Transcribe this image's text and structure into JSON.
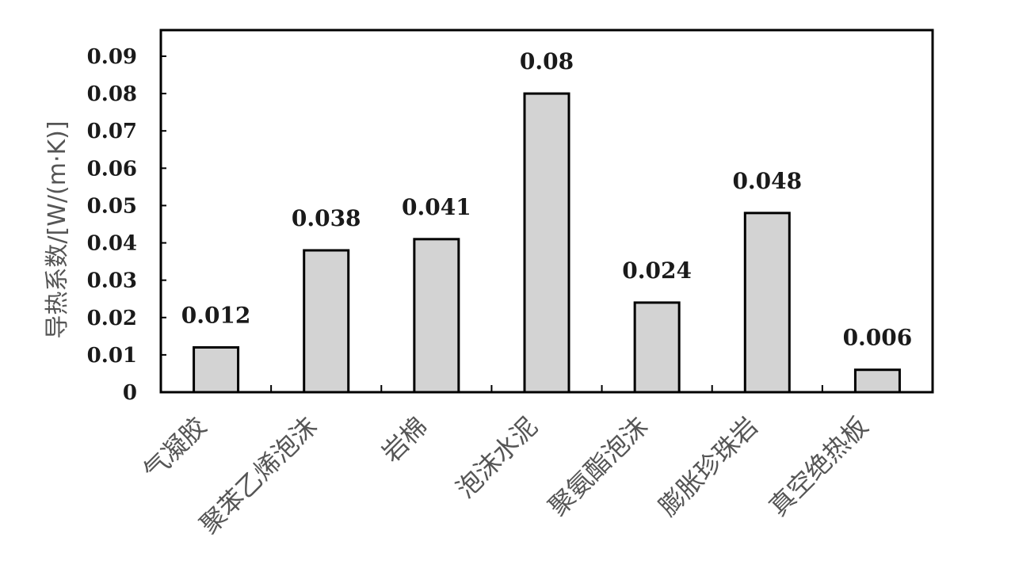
{
  "chart_data": {
    "type": "bar",
    "categories": [
      "气凝胶",
      "聚苯乙烯泡沫",
      "岩棉",
      "泡沫水泥",
      "聚氨酯泡沫",
      "膨胀珍珠岩",
      "真空绝热板"
    ],
    "values": [
      0.012,
      0.038,
      0.041,
      0.08,
      0.024,
      0.048,
      0.006
    ],
    "data_labels": [
      "0.012",
      "0.038",
      "0.041",
      "0.08",
      "0.024",
      "0.048",
      "0.006"
    ],
    "title": "",
    "xlabel": "",
    "ylabel": "导热系数/[W/(m·K)]",
    "ylim": [
      0,
      0.097
    ],
    "yticks": [
      0,
      0.01,
      0.02,
      0.03,
      0.04,
      0.05,
      0.06,
      0.07,
      0.08,
      0.09
    ],
    "ytick_labels": [
      "0",
      "0.01",
      "0.02",
      "0.03",
      "0.04",
      "0.05",
      "0.06",
      "0.07",
      "0.08",
      "0.09"
    ],
    "grid": false,
    "legend": "none",
    "bar_color": "#d3d3d3",
    "edge_color": "#000000"
  }
}
